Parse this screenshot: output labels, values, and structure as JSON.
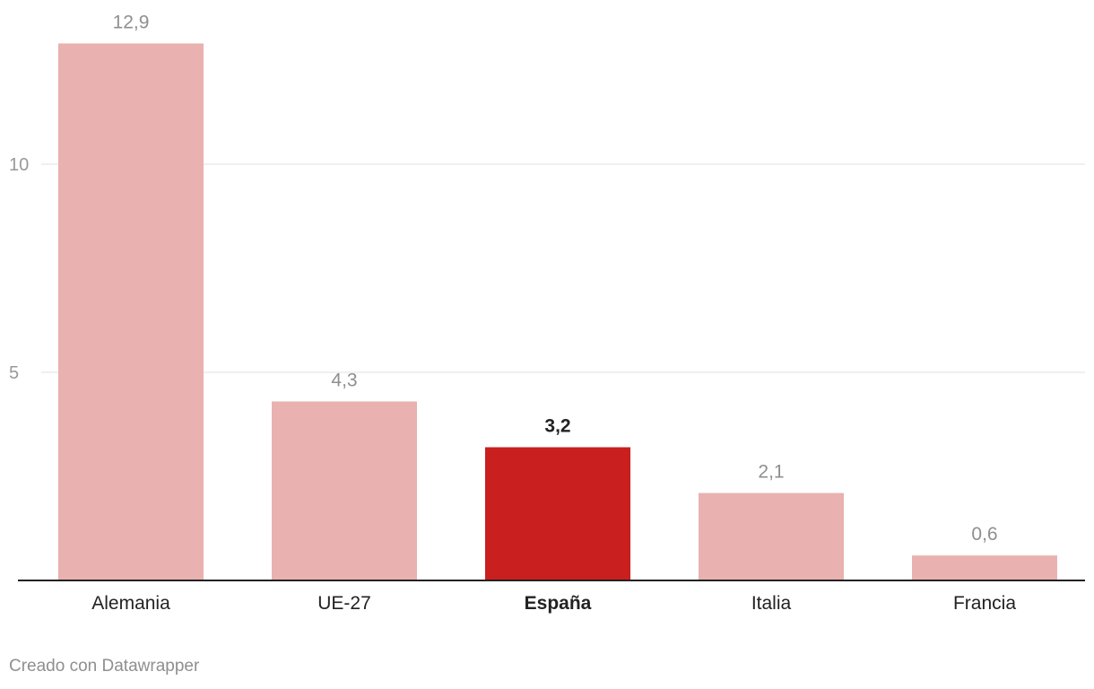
{
  "chart_data": {
    "type": "bar",
    "categories": [
      "Alemania",
      "UE-27",
      "España",
      "Italia",
      "Francia"
    ],
    "values": [
      12.9,
      4.3,
      3.2,
      2.1,
      0.6
    ],
    "value_labels": [
      "12,9",
      "4,3",
      "3,2",
      "2,1",
      "0,6"
    ],
    "highlight": "España",
    "ylim": [
      0,
      14
    ],
    "yticks": [
      5,
      10
    ],
    "ytick_labels": [
      "5",
      "10"
    ],
    "grid": true,
    "colors": {
      "bar": "#e9b1b0",
      "highlight": "#c91f1f",
      "grid": "#e0e0e0",
      "axis": "#222222",
      "tick_text": "#999999",
      "label_text": "#8f8f8f",
      "category_text": "#222222"
    }
  },
  "footer": {
    "credit": "Creado con Datawrapper"
  }
}
